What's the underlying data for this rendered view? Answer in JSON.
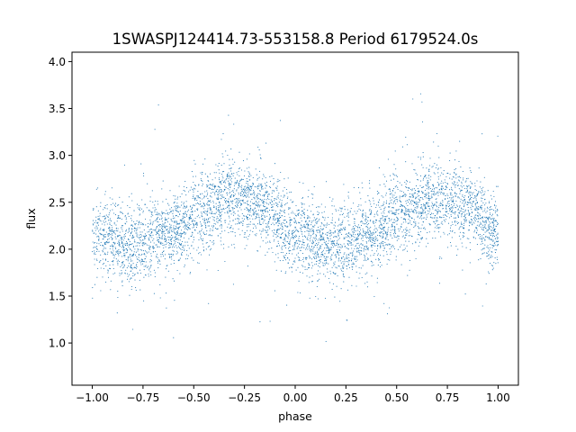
{
  "chart_data": {
    "type": "scatter",
    "title": "1SWASPJ124414.73-553158.8 Period 6179524.0s",
    "xlabel": "phase",
    "ylabel": "flux",
    "xlim": [
      -1.1,
      1.1
    ],
    "ylim": [
      0.55,
      4.1
    ],
    "xticks": [
      -1.0,
      -0.75,
      -0.5,
      -0.25,
      0.0,
      0.25,
      0.5,
      0.75,
      1.0
    ],
    "xtick_labels": [
      "−1.00",
      "−0.75",
      "−0.50",
      "−0.25",
      "0.00",
      "0.25",
      "0.50",
      "0.75",
      "1.00"
    ],
    "yticks": [
      1.0,
      1.5,
      2.0,
      2.5,
      3.0,
      3.5,
      4.0
    ],
    "ytick_labels": [
      "1.0",
      "1.5",
      "2.0",
      "2.5",
      "3.0",
      "3.5",
      "4.0"
    ],
    "grid": false,
    "legend": "none",
    "marker_color": "#1f77b4",
    "x_range_of_points": [
      -1.0,
      1.0
    ],
    "trend_profile": [
      {
        "phase": -1.0,
        "flux": 2.15
      },
      {
        "phase": -0.8,
        "flux": 2.05
      },
      {
        "phase": -0.6,
        "flux": 2.2
      },
      {
        "phase": -0.5,
        "flux": 2.35
      },
      {
        "phase": -0.3,
        "flux": 2.55
      },
      {
        "phase": -0.15,
        "flux": 2.45
      },
      {
        "phase": 0.0,
        "flux": 2.15
      },
      {
        "phase": 0.2,
        "flux": 2.05
      },
      {
        "phase": 0.4,
        "flux": 2.2
      },
      {
        "phase": 0.5,
        "flux": 2.35
      },
      {
        "phase": 0.7,
        "flux": 2.55
      },
      {
        "phase": 0.85,
        "flux": 2.45
      },
      {
        "phase": 1.0,
        "flux": 2.15
      }
    ]
  }
}
